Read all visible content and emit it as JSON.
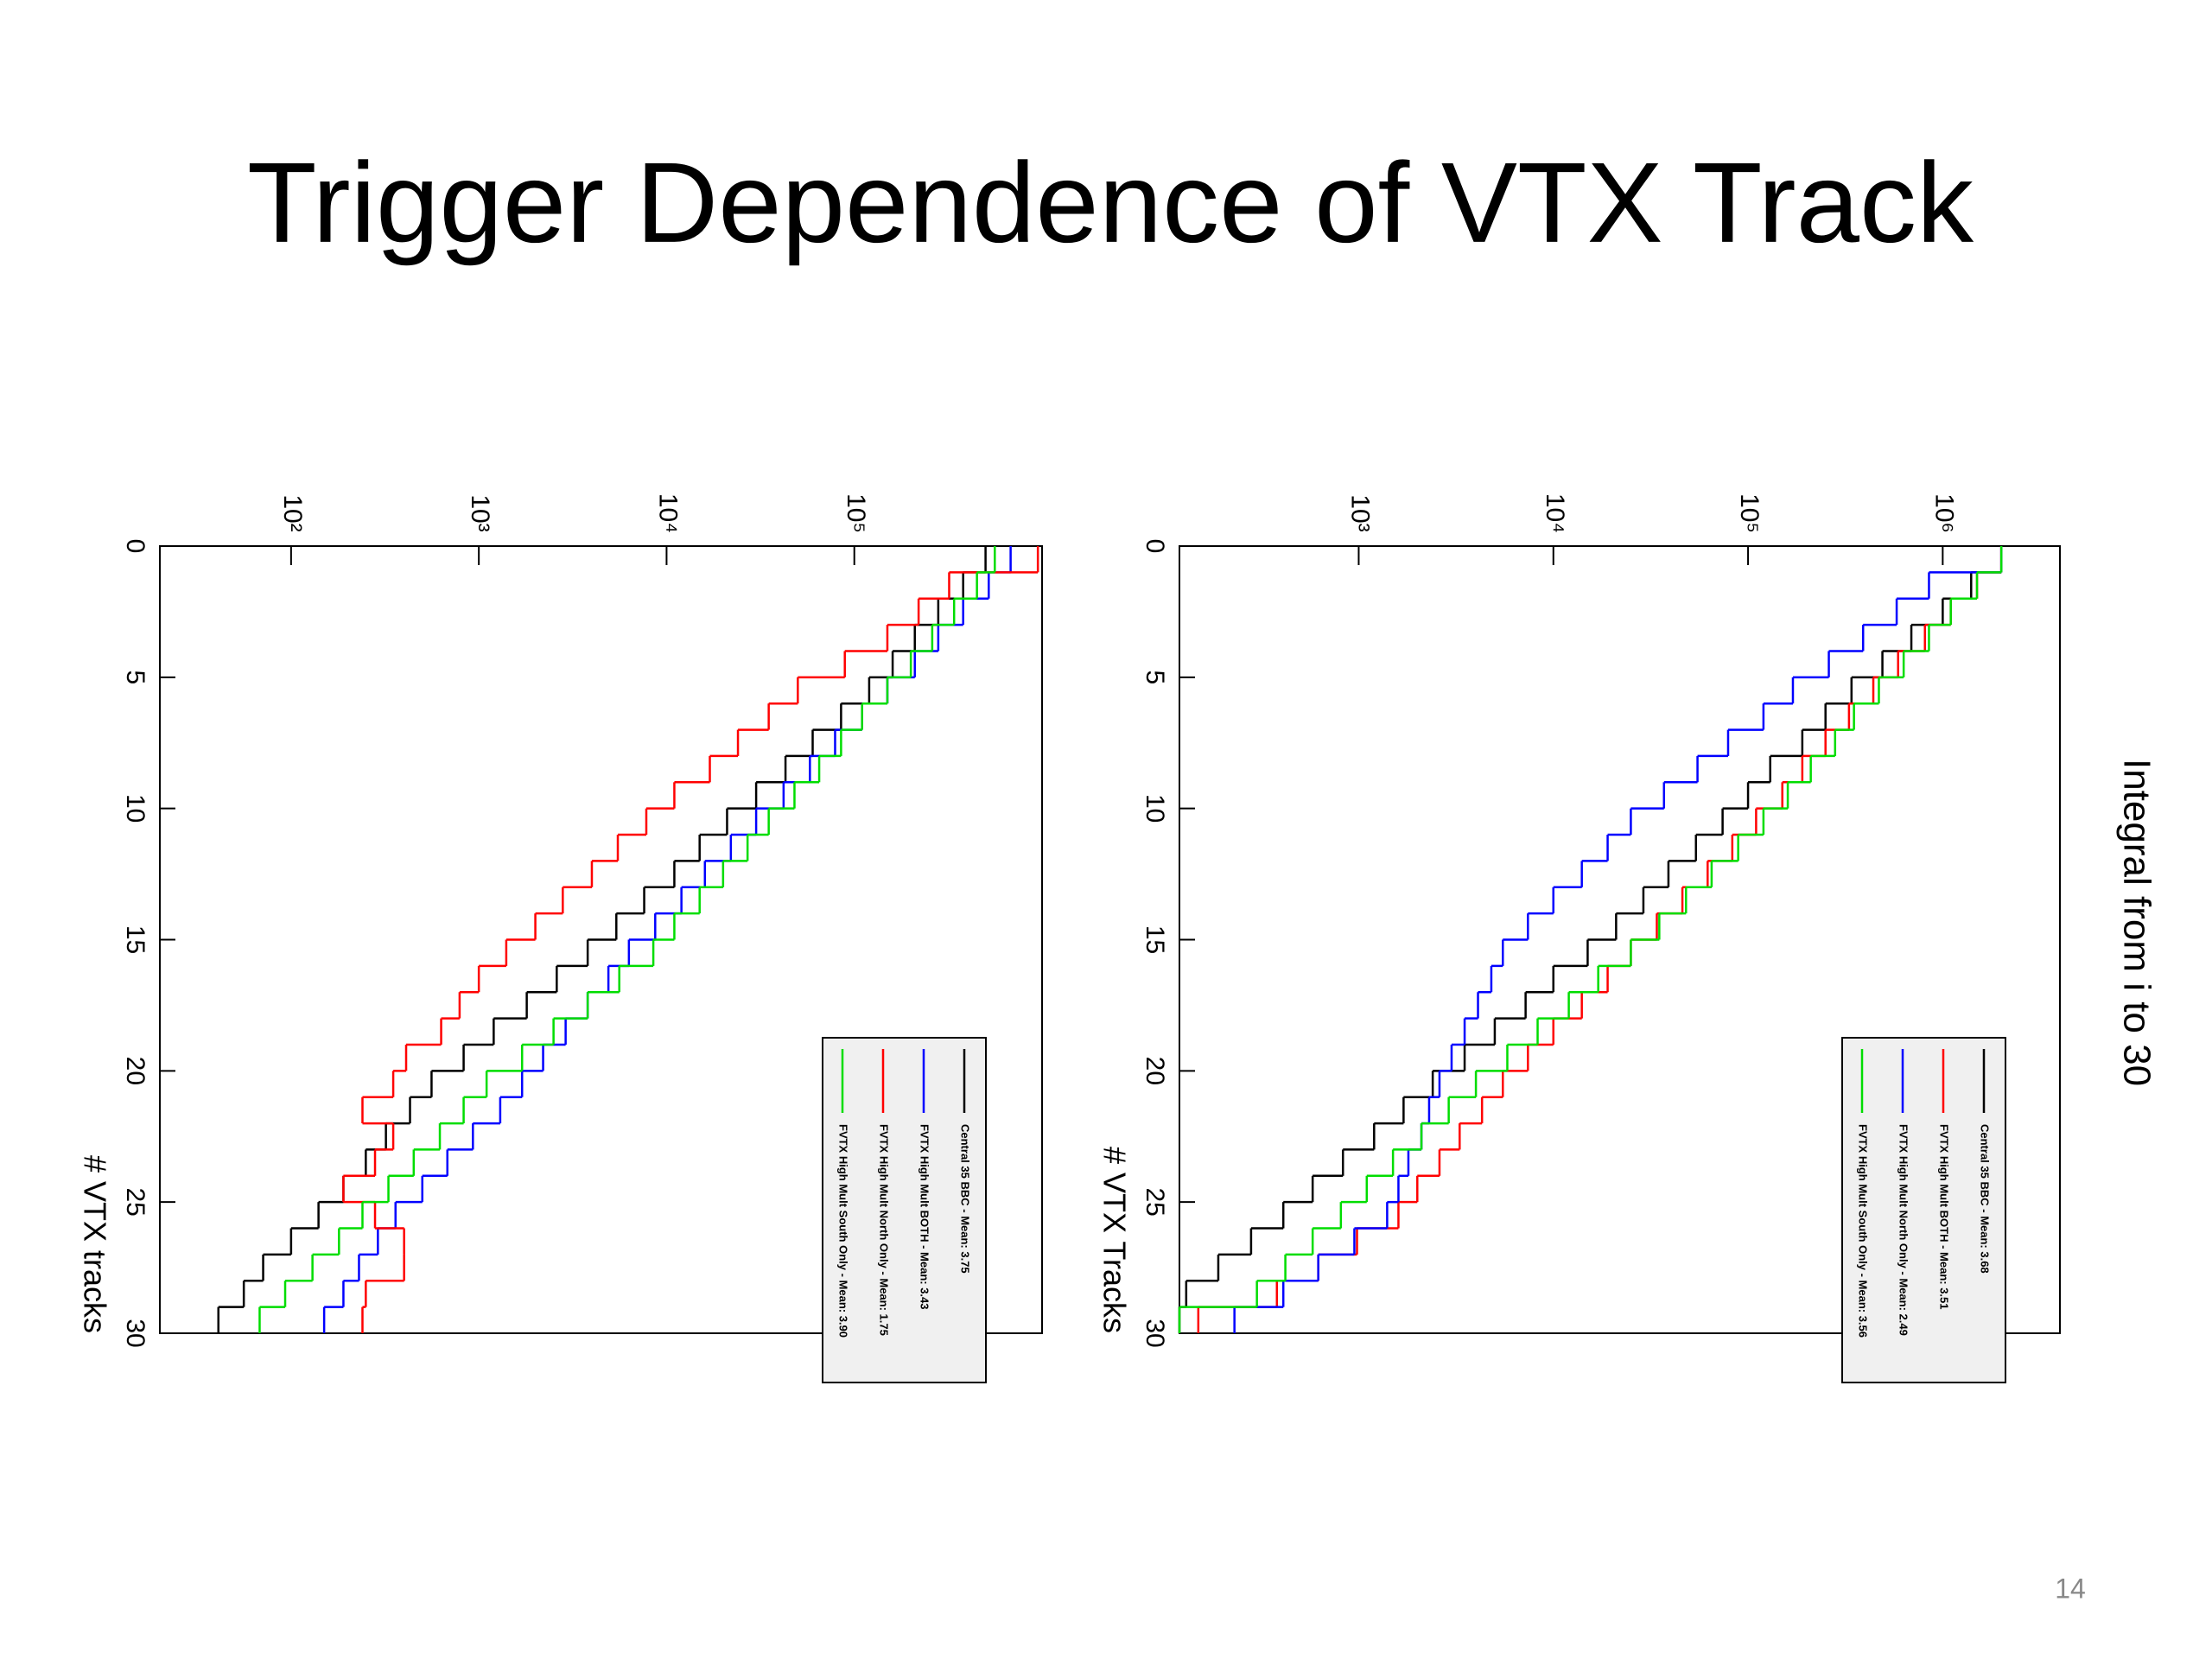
{
  "title": "Trigger Dependence of VTX Track",
  "side_label": "Integral from i to 30",
  "slide_number": "14",
  "chart_data": [
    {
      "type": "histogram",
      "log_y": true,
      "x_label": "# VTX tracks",
      "bins": [
        0,
        1,
        2,
        3,
        4,
        5,
        6,
        7,
        8,
        9,
        10,
        11,
        12,
        13,
        14,
        15,
        16,
        17,
        18,
        19,
        20,
        21,
        22,
        23,
        24,
        25,
        26,
        27,
        28,
        29,
        30
      ],
      "xlim": [
        0,
        30
      ],
      "xticks": [
        0,
        5,
        10,
        15,
        20,
        25,
        30
      ],
      "ylim": [
        20,
        1000000
      ],
      "yticks": [
        {
          "value": 100,
          "label": "10²"
        },
        {
          "value": 1000,
          "label": "10³"
        },
        {
          "value": 10000,
          "label": "10⁴"
        },
        {
          "value": 100000,
          "label": "10⁵"
        }
      ],
      "series": [
        {
          "name": "Central 35 BBC - Mean: 3.75",
          "color": "#000000",
          "values": [
            500000,
            380000,
            280000,
            210000,
            160000,
            120000,
            85000,
            60000,
            43000,
            30000,
            21000,
            15000,
            11000,
            7600,
            5400,
            3800,
            2600,
            1800,
            1200,
            830,
            560,
            430,
            320,
            250,
            190,
            140,
            100,
            71,
            56,
            41
          ]
        },
        {
          "name": "FVTX High Mult BOTH - Mean: 3.43",
          "color": "#0000ff",
          "values": [
            680000,
            520000,
            380000,
            280000,
            210000,
            150000,
            110000,
            79000,
            58000,
            42000,
            30000,
            22000,
            16000,
            12000,
            8700,
            6300,
            4900,
            3800,
            2900,
            2200,
            1700,
            1300,
            930,
            680,
            500,
            360,
            290,
            230,
            190,
            150
          ]
        },
        {
          "name": "FVTX High Mult North Only - Mean: 1.75",
          "color": "#ff0000",
          "values": [
            950000,
            320000,
            220000,
            150000,
            89000,
            50000,
            35000,
            24000,
            17000,
            11000,
            7800,
            5500,
            4000,
            2800,
            2000,
            1400,
            1000,
            790,
            630,
            410,
            350,
            240,
            350,
            280,
            190,
            280,
            400,
            400,
            250,
            240
          ]
        },
        {
          "name": "FVTX High Mult South Only - Mean: 3.90",
          "color": "#00dd00",
          "values": [
            560000,
            450000,
            340000,
            260000,
            200000,
            150000,
            110000,
            85000,
            65000,
            48000,
            35000,
            27000,
            20000,
            15000,
            11000,
            8500,
            5600,
            3800,
            2500,
            1700,
            1100,
            830,
            620,
            450,
            330,
            240,
            180,
            130,
            93,
            68
          ]
        }
      ]
    },
    {
      "type": "histogram",
      "log_y": true,
      "x_label": "# VTX Tracks",
      "bins": [
        0,
        1,
        2,
        3,
        4,
        5,
        6,
        7,
        8,
        9,
        10,
        11,
        12,
        13,
        14,
        15,
        16,
        17,
        18,
        19,
        20,
        21,
        22,
        23,
        24,
        25,
        26,
        27,
        28,
        29,
        30
      ],
      "xlim": [
        0,
        30
      ],
      "xticks": [
        0,
        5,
        10,
        15,
        20,
        25,
        30
      ],
      "ylim": [
        120,
        4000000
      ],
      "yticks": [
        {
          "value": 1000,
          "label": "10³"
        },
        {
          "value": 10000,
          "label": "10⁴"
        },
        {
          "value": 100000,
          "label": "10⁵"
        },
        {
          "value": 1000000,
          "label": "10⁶"
        }
      ],
      "series": [
        {
          "name": "Central 35 BBC - Mean: 3.68",
          "color": "#000000",
          "values": [
            2000000,
            1400000,
            1000000,
            690000,
            490000,
            340000,
            250000,
            190000,
            130000,
            100000,
            74000,
            54000,
            39000,
            29000,
            21000,
            15000,
            10000,
            7200,
            5000,
            3500,
            2400,
            1700,
            1200,
            830,
            580,
            410,
            280,
            190,
            130,
            120
          ]
        },
        {
          "name": "FVTX High Mult BOTH - Mean: 3.51",
          "color": "#ff0000",
          "values": [
            2000000,
            1500000,
            1100000,
            810000,
            590000,
            440000,
            330000,
            250000,
            190000,
            150000,
            110000,
            83000,
            62000,
            46000,
            34000,
            25000,
            19000,
            14000,
            10000,
            7400,
            5500,
            4300,
            3300,
            2600,
            2000,
            1600,
            980,
            620,
            380,
            150
          ]
        },
        {
          "name": "FVTX High Mult North Only - Mean: 2.49",
          "color": "#0000ff",
          "values": [
            2000000,
            850000,
            580000,
            390000,
            260000,
            170000,
            120000,
            79000,
            55000,
            37000,
            25000,
            19000,
            14000,
            10000,
            7400,
            5500,
            4800,
            4100,
            3500,
            3000,
            2600,
            2300,
            2100,
            1800,
            1600,
            1400,
            950,
            620,
            410,
            230
          ]
        },
        {
          "name": "FVTX High Mult South Only - Mean: 3.56",
          "color": "#00dd00",
          "values": [
            2000000,
            1500000,
            1100000,
            850000,
            630000,
            470000,
            350000,
            280000,
            210000,
            160000,
            120000,
            89000,
            65000,
            48000,
            35000,
            25000,
            17000,
            12000,
            8300,
            5800,
            4000,
            2900,
            2100,
            1500,
            1100,
            810,
            580,
            420,
            300,
            120
          ]
        }
      ]
    }
  ]
}
